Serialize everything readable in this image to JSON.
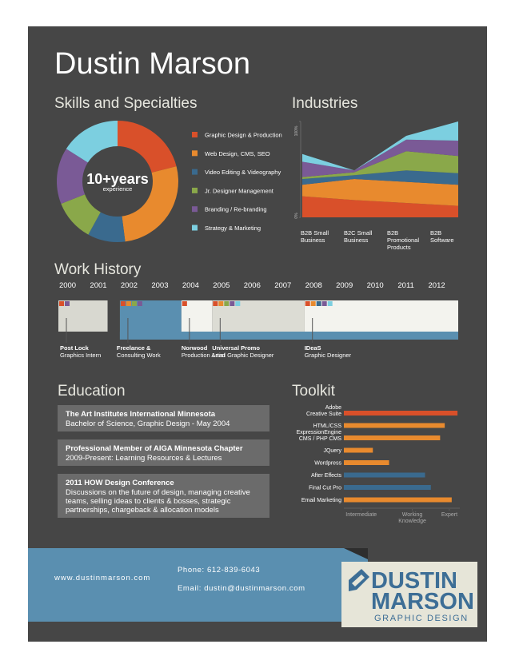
{
  "name": "Dustin Marson",
  "chart_data": [
    {
      "type": "pie",
      "title": "Skills and Specialties",
      "center_text": [
        "10+years",
        "experience"
      ],
      "categories": [
        "Graphic Design & Production",
        "Web Design, CMS, SEO",
        "Video Editing & Videography",
        "Jr. Designer Management",
        "Branding / Re-branding",
        "Strategy & Marketing"
      ],
      "values": [
        21,
        27,
        10,
        11,
        15,
        16
      ],
      "colors": [
        "#d9502a",
        "#e88a2e",
        "#3a6a8e",
        "#8aa84a",
        "#7a5a96",
        "#7ccfe0"
      ]
    },
    {
      "type": "area",
      "title": "Industries",
      "stacked": true,
      "categories": [
        [
          "B2B Small",
          "Business"
        ],
        [
          "B2C Small",
          "Business"
        ],
        [
          "B2B",
          "Promotional",
          "Products"
        ],
        [
          "B2B",
          "Software"
        ]
      ],
      "series": [
        {
          "color": "#d9502a",
          "values": [
            22,
            18,
            15,
            12
          ]
        },
        {
          "color": "#e88a2e",
          "values": [
            12,
            22,
            22,
            22
          ]
        },
        {
          "color": "#3a6a8e",
          "values": [
            6,
            4,
            12,
            12
          ]
        },
        {
          "color": "#8aa84a",
          "values": [
            2,
            3,
            20,
            18
          ]
        },
        {
          "color": "#7a5a96",
          "values": [
            16,
            2,
            12,
            16
          ]
        },
        {
          "color": "#7ccfe0",
          "values": [
            8,
            0,
            4,
            20
          ]
        }
      ],
      "ylim": [
        0,
        100
      ],
      "yticks": [
        {
          "value": 0,
          "label": "0%"
        },
        {
          "value": 100,
          "label": "100%"
        }
      ]
    },
    {
      "type": "timeline",
      "title": "Work History",
      "xlim": [
        1999.7,
        2012.7
      ],
      "xticks": [
        2000,
        2001,
        2002,
        2003,
        2004,
        2005,
        2006,
        2007,
        2008,
        2009,
        2010,
        2011,
        2012
      ],
      "items": [
        {
          "name": "Post Lock",
          "role": "Graphics Intern",
          "start": 1999.7,
          "end": 2001.3,
          "color": "#d8d8d0",
          "tags": [
            "#d9502a",
            "#7a5a96"
          ]
        },
        {
          "name": "Freelance &",
          "role": "Consulting Work",
          "start": 2001.7,
          "end": 2003.7,
          "color": "#5a8fb0",
          "tags": [
            "#d9502a",
            "#e88a2e",
            "#8aa84a",
            "#7a5a96"
          ]
        },
        {
          "name": "Norwood",
          "role": "Production Artist",
          "start": 2003.7,
          "end": 2004.7,
          "color": "#f3f3ee",
          "tags": [
            "#d9502a"
          ]
        },
        {
          "name": "Universal Promo",
          "role": "Lead Graphic Designer",
          "start": 2004.7,
          "end": 2007.7,
          "color": "#dcdcd4",
          "tags": [
            "#d9502a",
            "#e88a2e",
            "#8aa84a",
            "#7a5a96",
            "#7ccfe0"
          ]
        },
        {
          "name": "IDeaS",
          "role": "Graphic Designer",
          "start": 2007.7,
          "end": 2012.7,
          "color": "#f3f3ee",
          "tags": [
            "#d9502a",
            "#e88a2e",
            "#3a6a8e",
            "#7a5a96",
            "#7ccfe0",
            "#f3f3ee"
          ]
        }
      ]
    },
    {
      "type": "hbar",
      "title": "Toolkit",
      "categories": [
        [
          "Adobe",
          "Creative Suite"
        ],
        "HTML/CSS",
        [
          "ExpressionEngine",
          "CMS / PHP CMS"
        ],
        "JQuery",
        "Wordpress",
        "After Effects",
        "Final Cut Pro",
        "Email Marketing"
      ],
      "values": [
        98,
        87,
        83,
        25,
        39,
        70,
        75,
        93
      ],
      "colors": [
        "#d9502a",
        "#e88a2e",
        "#e88a2e",
        "#e88a2e",
        "#e88a2e",
        "#3a6a8e",
        "#3a6a8e",
        "#e88a2e"
      ],
      "xlim": [
        0,
        100
      ],
      "xticks": [
        {
          "value": 15,
          "label": "Intermediate"
        },
        {
          "value": 59,
          "label": [
            "Working",
            "Knowledge"
          ]
        },
        {
          "value": 91,
          "label": "Expert"
        }
      ]
    }
  ],
  "education": {
    "title": "Education",
    "items": [
      {
        "title": "The Art Institutes International Minnesota",
        "lines": [
          "Bachelor of Science, Graphic Design - May 2004"
        ]
      },
      {
        "title": "Professional Member of AIGA Minnesota Chapter",
        "lines": [
          "2009-Present: Learning Resources & Lectures"
        ]
      },
      {
        "title": "2011 HOW Design Conference",
        "lines": [
          "Discussions on the future of design, managing creative",
          "teams, selling ideas to clients & bosses, strategic",
          "partnerships, chargeback & allocation models"
        ]
      }
    ]
  },
  "contact": {
    "website": "www.dustinmarson.com",
    "phone": "Phone: 612-839-6043",
    "email": "Email: dustin@dustinmarson.com"
  },
  "logo": {
    "line1": "DUSTIN",
    "line2": "MARSON",
    "tagline": "GRAPHIC DESIGN"
  }
}
